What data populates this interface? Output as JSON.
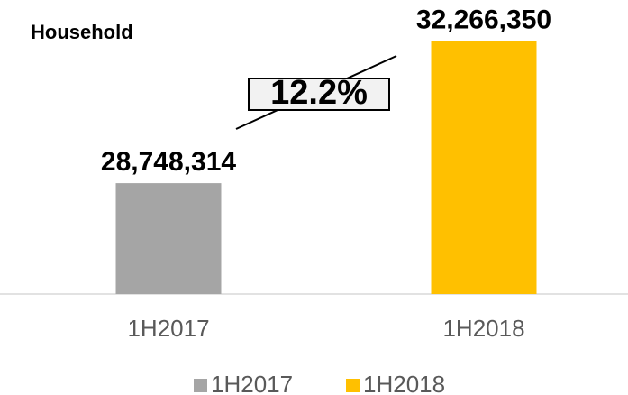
{
  "chart_data": {
    "type": "bar",
    "title": "Household",
    "categories": [
      "1H2017",
      "1H2018"
    ],
    "values": [
      28748314,
      32266350
    ],
    "value_labels": [
      "28,748,314",
      "32,266,350"
    ],
    "colors": [
      "#a5a5a5",
      "#ffc000"
    ],
    "annotation": "12.2%",
    "ylim": [
      26000000,
      33000000
    ],
    "legend": "bottom"
  }
}
